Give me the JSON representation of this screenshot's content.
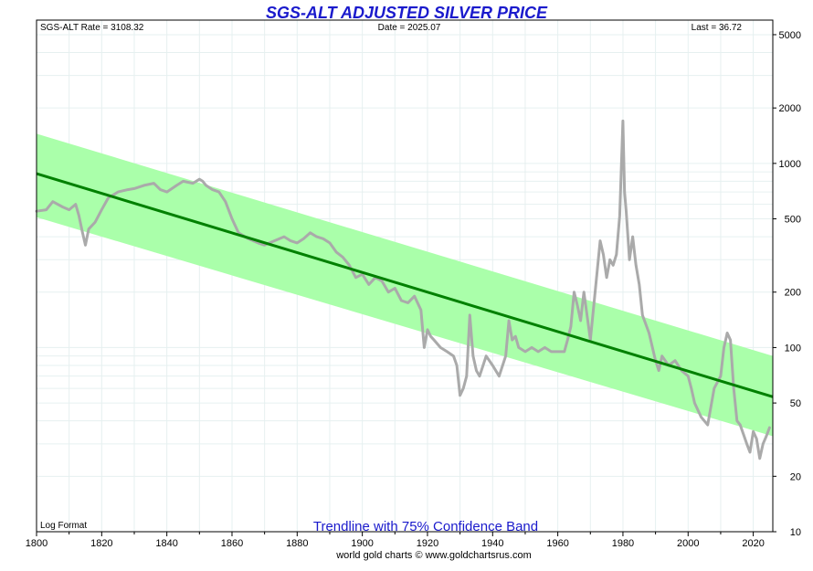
{
  "chart_data": {
    "type": "line",
    "title": "SGS-ALT ADJUSTED  SILVER PRICE",
    "header": {
      "rate": "SGS-ALT Rate = 3108.32",
      "date": "Date = 2025.07",
      "last": "Last = 36.72"
    },
    "footnote_left": "Log Format",
    "subtitle": "Trendline with 75% Confidence Band",
    "credit": "world gold charts © www.goldchartsrus.com",
    "x_range": [
      1800,
      2026
    ],
    "y_range": [
      10,
      6000
    ],
    "y_scale": "log",
    "x_ticks": [
      "1800",
      "1820",
      "1840",
      "1860",
      "1880",
      "1900",
      "1920",
      "1940",
      "1960",
      "1980",
      "2000",
      "2020"
    ],
    "y_ticks": [
      "5000",
      "2000",
      "1000",
      "500",
      "200",
      "100",
      "50",
      "20",
      "10"
    ],
    "grid": true,
    "colors": {
      "series": "#aaaaaa",
      "trend": "#008000",
      "band": "#aaffaa",
      "title": "#1a1acc",
      "grid": "#e6f0f0"
    },
    "trendline": {
      "start": [
        1800,
        880
      ],
      "end": [
        2026,
        54
      ]
    },
    "band": {
      "upper": {
        "start": [
          1800,
          1450
        ],
        "end": [
          2026,
          90
        ]
      },
      "lower": {
        "start": [
          1800,
          510
        ],
        "end": [
          2026,
          33
        ]
      }
    },
    "series": [
      {
        "x": [
          1800,
          1803,
          1805,
          1808,
          1810,
          1812,
          1813,
          1814,
          1815,
          1816,
          1818,
          1820,
          1822,
          1825,
          1828,
          1830,
          1833,
          1836,
          1838,
          1840,
          1843,
          1845,
          1848,
          1850,
          1851,
          1852,
          1854,
          1856,
          1858,
          1860,
          1862,
          1865,
          1868,
          1870,
          1873,
          1876,
          1878,
          1880,
          1882,
          1884,
          1886,
          1888,
          1890,
          1892,
          1894,
          1896,
          1898,
          1900,
          1902,
          1904,
          1906,
          1908,
          1910,
          1912,
          1914,
          1916,
          1918,
          1919,
          1920,
          1921,
          1922,
          1924,
          1926,
          1928,
          1929,
          1930,
          1931,
          1932,
          1933,
          1934,
          1935,
          1936,
          1938,
          1940,
          1942,
          1944,
          1945,
          1946,
          1947,
          1948,
          1950,
          1952,
          1954,
          1956,
          1958,
          1960,
          1962,
          1963,
          1964,
          1965,
          1966,
          1967,
          1968,
          1970,
          1972,
          1973,
          1974,
          1975,
          1976,
          1977,
          1978,
          1979,
          1980,
          1980.5,
          1981,
          1982,
          1983,
          1984,
          1985,
          1986,
          1988,
          1990,
          1991,
          1992,
          1994,
          1996,
          1998,
          2000,
          2001,
          2002,
          2004,
          2006,
          2008,
          2010,
          2011,
          2012,
          2013,
          2014,
          2015,
          2016,
          2018,
          2019,
          2020,
          2021,
          2022,
          2023,
          2024,
          2025
        ],
        "values": [
          550,
          560,
          620,
          580,
          560,
          600,
          520,
          430,
          360,
          440,
          480,
          560,
          650,
          700,
          720,
          730,
          760,
          780,
          720,
          700,
          760,
          800,
          780,
          820,
          800,
          760,
          720,
          700,
          620,
          500,
          420,
          390,
          370,
          360,
          380,
          400,
          380,
          370,
          390,
          420,
          400,
          390,
          370,
          330,
          310,
          280,
          240,
          250,
          220,
          240,
          230,
          200,
          210,
          180,
          175,
          190,
          160,
          100,
          125,
          115,
          110,
          100,
          95,
          90,
          80,
          55,
          60,
          70,
          150,
          90,
          75,
          70,
          90,
          80,
          70,
          90,
          140,
          110,
          115,
          100,
          95,
          100,
          95,
          100,
          95,
          95,
          95,
          110,
          130,
          200,
          170,
          140,
          200,
          110,
          250,
          380,
          320,
          240,
          300,
          280,
          320,
          520,
          1700,
          700,
          550,
          300,
          400,
          280,
          220,
          150,
          120,
          85,
          75,
          90,
          80,
          85,
          75,
          70,
          60,
          50,
          42,
          38,
          60,
          70,
          100,
          120,
          110,
          60,
          40,
          38,
          30,
          27,
          35,
          32,
          25,
          30,
          33,
          36.72
        ]
      }
    ]
  }
}
